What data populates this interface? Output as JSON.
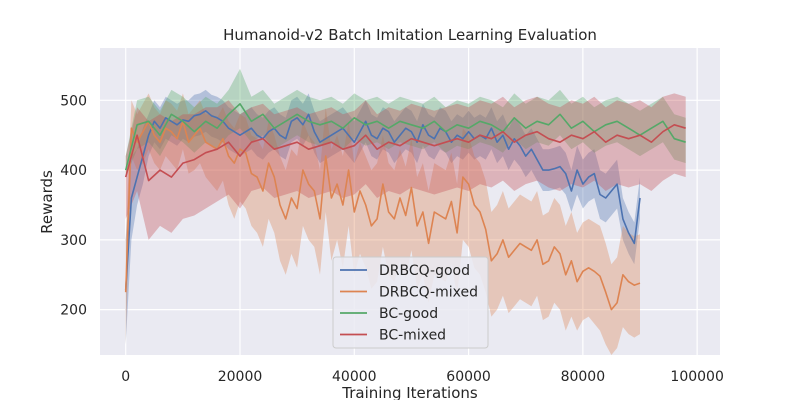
{
  "chart_data": {
    "type": "line",
    "title": "Humanoid-v2 Batch Imitation Learning Evaluation",
    "xlabel": "Training Iterations",
    "ylabel": "Rewards",
    "xlim": [
      -4500,
      104000
    ],
    "ylim": [
      135,
      575
    ],
    "xticks": [
      0,
      20000,
      40000,
      60000,
      80000,
      100000
    ],
    "xtick_labels": [
      "0",
      "20000",
      "40000",
      "60000",
      "80000",
      "100000"
    ],
    "yticks": [
      200,
      300,
      400,
      500
    ],
    "ytick_labels": [
      "200",
      "300",
      "400",
      "500"
    ],
    "grid": true,
    "legend": "bottom-center",
    "series": [
      {
        "name": "DRBCQ-good",
        "color": "#4c72b0",
        "x": [
          0,
          1000,
          2000,
          3000,
          4000,
          5000,
          6000,
          7000,
          8000,
          9000,
          10000,
          11000,
          12000,
          13000,
          14000,
          15000,
          16000,
          17000,
          18000,
          19000,
          20000,
          21000,
          22000,
          23000,
          24000,
          25000,
          26000,
          27000,
          28000,
          29000,
          30000,
          31000,
          32000,
          33000,
          34000,
          35000,
          36000,
          37000,
          38000,
          39000,
          40000,
          41000,
          42000,
          43000,
          44000,
          45000,
          46000,
          47000,
          48000,
          49000,
          50000,
          51000,
          52000,
          53000,
          54000,
          55000,
          56000,
          57000,
          58000,
          59000,
          60000,
          61000,
          62000,
          63000,
          64000,
          65000,
          66000,
          67000,
          68000,
          69000,
          70000,
          71000,
          72000,
          73000,
          74000,
          75000,
          76000,
          77000,
          78000,
          79000,
          80000,
          81000,
          82000,
          83000,
          84000,
          85000,
          86000,
          87000,
          88000,
          89000,
          90000
        ],
        "y": [
          228,
          360,
          390,
          420,
          450,
          470,
          460,
          475,
          470,
          465,
          472,
          470,
          478,
          480,
          485,
          478,
          475,
          470,
          460,
          455,
          450,
          455,
          460,
          450,
          445,
          455,
          460,
          450,
          445,
          470,
          475,
          465,
          480,
          455,
          440,
          445,
          450,
          455,
          460,
          450,
          440,
          455,
          470,
          450,
          445,
          460,
          455,
          440,
          450,
          460,
          455,
          440,
          465,
          450,
          445,
          460,
          455,
          440,
          450,
          445,
          455,
          445,
          450,
          445,
          460,
          440,
          450,
          430,
          445,
          435,
          420,
          430,
          415,
          400,
          400,
          402,
          405,
          395,
          370,
          400,
          380,
          390,
          395,
          365,
          360,
          370,
          380,
          330,
          310,
          295,
          360
        ],
        "lower": [
          150,
          300,
          350,
          380,
          420,
          440,
          430,
          445,
          440,
          435,
          445,
          440,
          448,
          450,
          455,
          448,
          445,
          440,
          430,
          425,
          420,
          425,
          430,
          420,
          415,
          425,
          430,
          420,
          415,
          440,
          445,
          435,
          450,
          425,
          410,
          415,
          420,
          425,
          430,
          420,
          410,
          425,
          440,
          420,
          415,
          430,
          425,
          410,
          420,
          430,
          425,
          410,
          435,
          420,
          415,
          430,
          425,
          410,
          420,
          415,
          425,
          415,
          420,
          415,
          430,
          410,
          420,
          400,
          415,
          405,
          390,
          400,
          385,
          370,
          370,
          372,
          375,
          365,
          340,
          365,
          345,
          355,
          360,
          330,
          325,
          335,
          345,
          300,
          280,
          265,
          330
        ],
        "upper": [
          300,
          420,
          430,
          460,
          480,
          500,
          490,
          505,
          500,
          495,
          500,
          500,
          508,
          510,
          515,
          508,
          505,
          500,
          490,
          485,
          480,
          485,
          490,
          480,
          475,
          485,
          490,
          480,
          475,
          500,
          505,
          495,
          510,
          485,
          470,
          475,
          480,
          485,
          490,
          480,
          470,
          485,
          500,
          480,
          475,
          490,
          485,
          470,
          480,
          490,
          485,
          470,
          495,
          480,
          475,
          490,
          485,
          470,
          480,
          475,
          485,
          475,
          480,
          475,
          490,
          470,
          480,
          460,
          475,
          465,
          450,
          460,
          445,
          430,
          430,
          432,
          435,
          425,
          400,
          435,
          415,
          425,
          430,
          400,
          395,
          405,
          415,
          360,
          340,
          325,
          390
        ]
      },
      {
        "name": "DRBCQ-mixed",
        "color": "#dd8452",
        "x": [
          0,
          1000,
          2000,
          3000,
          4000,
          5000,
          6000,
          7000,
          8000,
          9000,
          10000,
          11000,
          12000,
          13000,
          14000,
          15000,
          16000,
          17000,
          18000,
          19000,
          20000,
          21000,
          22000,
          23000,
          24000,
          25000,
          26000,
          27000,
          28000,
          29000,
          30000,
          31000,
          32000,
          33000,
          34000,
          35000,
          36000,
          37000,
          38000,
          39000,
          40000,
          41000,
          42000,
          43000,
          44000,
          45000,
          46000,
          47000,
          48000,
          49000,
          50000,
          51000,
          52000,
          53000,
          54000,
          55000,
          56000,
          57000,
          58000,
          59000,
          60000,
          61000,
          62000,
          63000,
          64000,
          65000,
          66000,
          67000,
          68000,
          69000,
          70000,
          71000,
          72000,
          73000,
          74000,
          75000,
          76000,
          77000,
          78000,
          79000,
          80000,
          81000,
          82000,
          83000,
          84000,
          85000,
          86000,
          87000,
          88000,
          89000,
          90000
        ],
        "y": [
          225,
          460,
          440,
          455,
          470,
          450,
          440,
          460,
          455,
          445,
          470,
          440,
          450,
          460,
          440,
          435,
          430,
          445,
          420,
          410,
          430,
          425,
          395,
          390,
          370,
          410,
          390,
          350,
          330,
          360,
          345,
          400,
          380,
          370,
          330,
          420,
          360,
          380,
          350,
          400,
          340,
          370,
          350,
          320,
          330,
          380,
          340,
          330,
          360,
          335,
          375,
          320,
          340,
          295,
          340,
          335,
          330,
          355,
          310,
          390,
          380,
          350,
          340,
          315,
          270,
          280,
          300,
          275,
          285,
          295,
          290,
          285,
          300,
          265,
          270,
          290,
          280,
          250,
          270,
          240,
          255,
          260,
          255,
          248,
          225,
          200,
          210,
          250,
          240,
          235,
          238
        ],
        "lower": [
          150,
          420,
          400,
          410,
          430,
          410,
          400,
          420,
          410,
          400,
          430,
          395,
          400,
          410,
          390,
          380,
          370,
          385,
          350,
          330,
          355,
          345,
          320,
          310,
          290,
          330,
          310,
          270,
          250,
          280,
          260,
          320,
          300,
          290,
          250,
          340,
          270,
          300,
          260,
          320,
          250,
          280,
          260,
          230,
          240,
          290,
          250,
          240,
          270,
          245,
          285,
          230,
          250,
          210,
          250,
          245,
          240,
          265,
          220,
          300,
          290,
          260,
          250,
          225,
          190,
          200,
          220,
          195,
          205,
          215,
          210,
          205,
          220,
          185,
          190,
          210,
          200,
          170,
          190,
          170,
          185,
          190,
          180,
          170,
          150,
          135,
          145,
          175,
          165,
          160,
          165
        ],
        "upper": [
          300,
          500,
          480,
          495,
          510,
          490,
          480,
          500,
          495,
          485,
          510,
          480,
          490,
          500,
          480,
          480,
          475,
          490,
          470,
          460,
          480,
          475,
          450,
          445,
          430,
          470,
          450,
          420,
          400,
          430,
          420,
          470,
          450,
          440,
          400,
          490,
          430,
          450,
          420,
          470,
          410,
          440,
          420,
          400,
          410,
          450,
          410,
          400,
          430,
          405,
          445,
          390,
          410,
          370,
          410,
          405,
          400,
          425,
          380,
          460,
          450,
          420,
          410,
          385,
          340,
          350,
          370,
          345,
          355,
          365,
          360,
          355,
          370,
          335,
          340,
          360,
          350,
          320,
          340,
          310,
          325,
          330,
          325,
          320,
          295,
          265,
          275,
          320,
          310,
          305,
          308
        ]
      },
      {
        "name": "BC-good",
        "color": "#55a868",
        "x": [
          0,
          2000,
          4000,
          6000,
          8000,
          10000,
          12000,
          14000,
          16000,
          18000,
          20000,
          22000,
          24000,
          26000,
          28000,
          30000,
          32000,
          34000,
          36000,
          38000,
          40000,
          42000,
          44000,
          46000,
          48000,
          50000,
          52000,
          54000,
          56000,
          58000,
          60000,
          62000,
          64000,
          66000,
          68000,
          70000,
          72000,
          74000,
          76000,
          78000,
          80000,
          82000,
          84000,
          86000,
          88000,
          90000,
          92000,
          94000,
          96000,
          98000
        ],
        "y": [
          400,
          465,
          470,
          450,
          480,
          470,
          455,
          470,
          460,
          480,
          495,
          470,
          480,
          460,
          470,
          480,
          470,
          465,
          470,
          460,
          475,
          465,
          470,
          460,
          470,
          465,
          460,
          470,
          455,
          465,
          460,
          470,
          465,
          455,
          475,
          460,
          470,
          465,
          480,
          460,
          470,
          455,
          465,
          470,
          460,
          450,
          460,
          470,
          445,
          440
        ],
        "lower": [
          390,
          430,
          440,
          420,
          450,
          440,
          425,
          440,
          430,
          450,
          460,
          440,
          450,
          430,
          440,
          450,
          440,
          435,
          440,
          430,
          445,
          435,
          440,
          430,
          440,
          435,
          430,
          440,
          425,
          435,
          430,
          440,
          435,
          425,
          445,
          430,
          440,
          435,
          450,
          430,
          440,
          425,
          435,
          440,
          430,
          420,
          430,
          440,
          415,
          410
        ],
        "upper": [
          420,
          500,
          505,
          485,
          515,
          505,
          490,
          505,
          495,
          515,
          545,
          505,
          515,
          495,
          505,
          515,
          505,
          500,
          505,
          495,
          510,
          500,
          505,
          495,
          505,
          500,
          495,
          505,
          490,
          500,
          495,
          505,
          500,
          490,
          510,
          495,
          505,
          500,
          515,
          495,
          505,
          490,
          500,
          505,
          495,
          485,
          495,
          505,
          480,
          475
        ]
      },
      {
        "name": "BC-mixed",
        "color": "#c44e52",
        "x": [
          0,
          2000,
          4000,
          6000,
          8000,
          10000,
          12000,
          14000,
          16000,
          18000,
          20000,
          22000,
          24000,
          26000,
          28000,
          30000,
          32000,
          34000,
          36000,
          38000,
          40000,
          42000,
          44000,
          46000,
          48000,
          50000,
          52000,
          54000,
          56000,
          58000,
          60000,
          62000,
          64000,
          66000,
          68000,
          70000,
          72000,
          74000,
          76000,
          78000,
          80000,
          82000,
          84000,
          86000,
          88000,
          90000,
          92000,
          94000,
          96000,
          98000
        ],
        "y": [
          390,
          450,
          385,
          400,
          390,
          410,
          415,
          425,
          430,
          440,
          420,
          440,
          445,
          430,
          435,
          440,
          430,
          435,
          440,
          430,
          435,
          450,
          430,
          440,
          435,
          445,
          440,
          435,
          440,
          445,
          440,
          450,
          445,
          455,
          440,
          450,
          455,
          445,
          440,
          450,
          445,
          455,
          440,
          450,
          445,
          450,
          440,
          455,
          465,
          460
        ],
        "lower": [
          330,
          370,
          300,
          320,
          310,
          330,
          335,
          345,
          355,
          365,
          345,
          370,
          375,
          360,
          365,
          370,
          360,
          365,
          370,
          360,
          365,
          380,
          360,
          370,
          365,
          375,
          370,
          365,
          370,
          375,
          370,
          380,
          375,
          385,
          370,
          380,
          385,
          375,
          370,
          380,
          375,
          385,
          370,
          380,
          375,
          380,
          370,
          385,
          395,
          390
        ],
        "upper": [
          420,
          490,
          470,
          480,
          470,
          480,
          480,
          490,
          490,
          500,
          480,
          490,
          495,
          480,
          485,
          490,
          480,
          485,
          490,
          480,
          485,
          500,
          480,
          490,
          485,
          495,
          490,
          485,
          490,
          495,
          490,
          500,
          495,
          505,
          490,
          500,
          505,
          495,
          490,
          500,
          495,
          505,
          490,
          500,
          495,
          500,
          490,
          505,
          510,
          505
        ]
      }
    ]
  }
}
